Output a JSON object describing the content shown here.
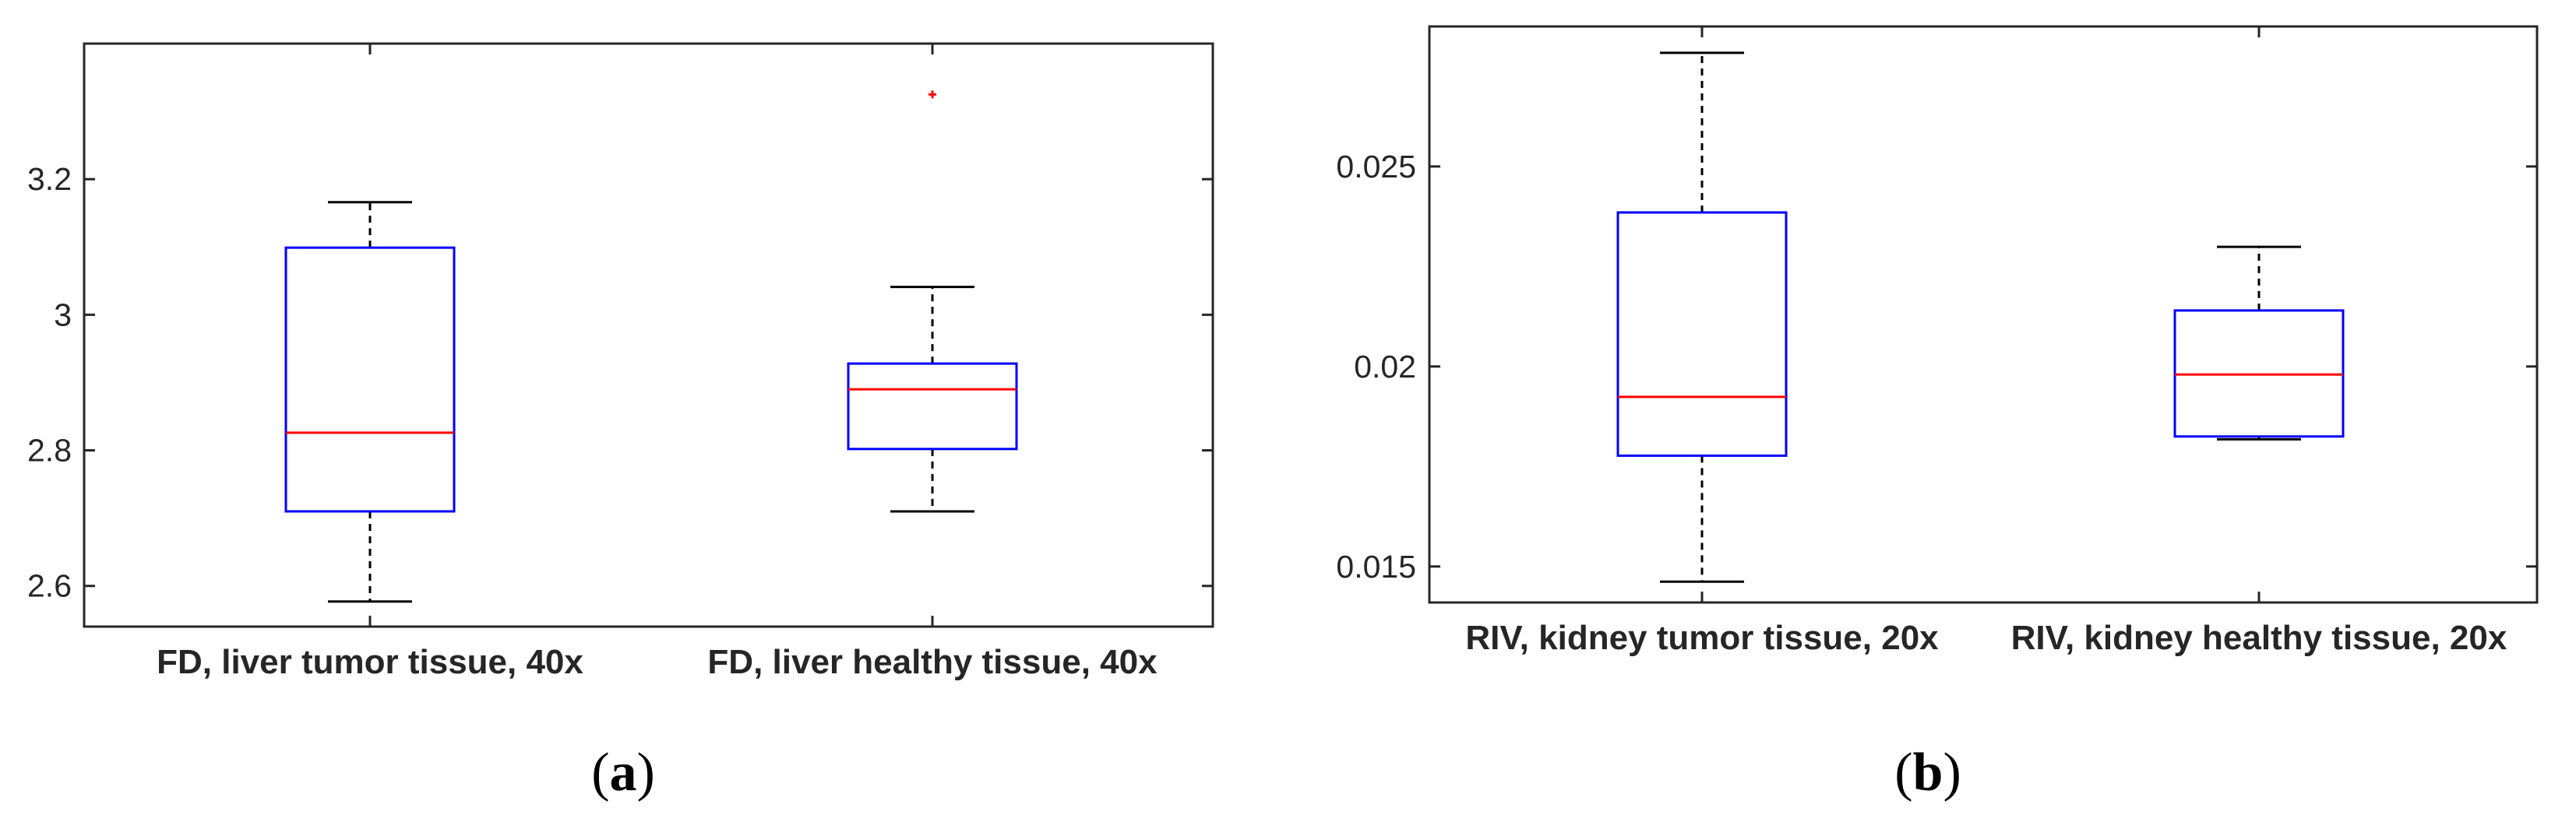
{
  "chart_data": [
    {
      "type": "box",
      "panel_label": "a",
      "ylim": [
        2.54,
        3.4
      ],
      "yticks": [
        2.6,
        2.8,
        3.0,
        3.2
      ],
      "ytick_labels": [
        "2.6",
        "2.8",
        "3",
        "3.2"
      ],
      "categories": [
        "FD, liver tumor tissue, 40x",
        "FD, liver healthy tissue, 40x"
      ],
      "boxes": [
        {
          "whisker_low": 2.577,
          "q1": 2.71,
          "median": 2.826,
          "q3": 3.099,
          "whisker_high": 3.166,
          "outliers": []
        },
        {
          "whisker_low": 2.71,
          "q1": 2.802,
          "median": 2.89,
          "q3": 2.928,
          "whisker_high": 3.041,
          "outliers": [
            3.325
          ]
        }
      ]
    },
    {
      "type": "box",
      "panel_label": "b",
      "ylim": [
        0.0141,
        0.0285
      ],
      "yticks": [
        0.015,
        0.02,
        0.025
      ],
      "ytick_labels": [
        "0.015",
        "0.02",
        "0.025"
      ],
      "categories": [
        "RIV, kidney tumor tissue, 20x",
        "RIV, kidney healthy tissue, 20x"
      ],
      "boxes": [
        {
          "whisker_low": 0.01462,
          "q1": 0.01777,
          "median": 0.01924,
          "q3": 0.02385,
          "whisker_high": 0.02784,
          "outliers": []
        },
        {
          "whisker_low": 0.01818,
          "q1": 0.01825,
          "median": 0.0198,
          "q3": 0.0214,
          "whisker_high": 0.02299,
          "outliers": []
        }
      ]
    }
  ],
  "colors": {
    "box": "#0000ff",
    "median": "#ff0000",
    "whisker": "#000000",
    "axis": "#262626",
    "outlier": "#ff0000"
  }
}
